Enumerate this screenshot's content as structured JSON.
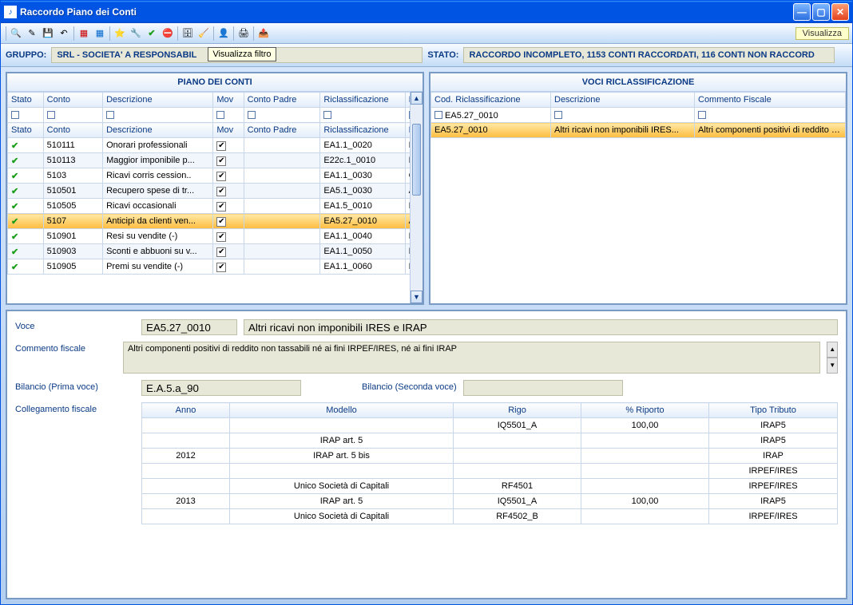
{
  "window": {
    "title": "Raccordo Piano dei Conti"
  },
  "toolbar": {
    "visualizza": "Visualizza"
  },
  "tooltip_filtro": "Visualizza filtro",
  "status": {
    "gruppo_label": "GRUPPO:",
    "gruppo_value": "SRL - SOCIETA' A RESPONSABIL",
    "stato_label": "STATO:",
    "stato_value": "RACCORDO INCOMPLETO, 1153 CONTI RACCORDATI, 116 CONTI NON RACCORD"
  },
  "panes": {
    "piano_title": "PIANO DEI CONTI",
    "voci_title": "VOCI RICLASSIFICAZIONE"
  },
  "piano": {
    "headers": {
      "stato": "Stato",
      "conto": "Conto",
      "descrizione": "Descrizione",
      "mov": "Mov",
      "conto_padre": "Conto Padre",
      "riclass": "Riclassificazione",
      "d": "D"
    },
    "rows": [
      {
        "conto": "510111",
        "descr": "Onorari professionali",
        "mov": true,
        "padre": "",
        "riclass": "EA1.1_0020",
        "d": "R"
      },
      {
        "conto": "510113",
        "descr": "Maggior imponibile p...",
        "mov": true,
        "padre": "",
        "riclass": "E22c.1_0010",
        "d": "R"
      },
      {
        "conto": "5103",
        "descr": "Ricavi corris cession..",
        "mov": true,
        "padre": "",
        "riclass": "EA1.1_0030",
        "d": "C"
      },
      {
        "conto": "510501",
        "descr": "Recupero spese di tr...",
        "mov": true,
        "padre": "",
        "riclass": "EA5.1_0030",
        "d": "A"
      },
      {
        "conto": "510505",
        "descr": "Ricavi occasionali",
        "mov": true,
        "padre": "",
        "riclass": "EA1.5_0010",
        "d": "R"
      },
      {
        "conto": "5107",
        "descr": "Anticipi da clienti ven...",
        "mov": true,
        "padre": "",
        "riclass": "EA5.27_0010",
        "d": "A",
        "selected": true
      },
      {
        "conto": "510901",
        "descr": "Resi su vendite (-)",
        "mov": true,
        "padre": "",
        "riclass": "EA1.1_0040",
        "d": "R"
      },
      {
        "conto": "510903",
        "descr": "Sconti e abbuoni su v...",
        "mov": true,
        "padre": "",
        "riclass": "EA1.1_0050",
        "d": "R"
      },
      {
        "conto": "510905",
        "descr": "Premi su vendite (-)",
        "mov": true,
        "padre": "",
        "riclass": "EA1.1_0060",
        "d": "P"
      }
    ]
  },
  "voci": {
    "headers": {
      "cod": "Cod. Riclassificazione",
      "descr": "Descrizione",
      "commento": "Commento Fiscale"
    },
    "rows": [
      {
        "cod": "EA5.27_0010",
        "descr": "",
        "commento": "",
        "filter": true
      },
      {
        "cod": "EA5.27_0010",
        "descr": "Altri ricavi non imponibili IRES...",
        "commento": "Altri componenti positivi di reddito no...",
        "selected": true
      }
    ]
  },
  "detail": {
    "voce_label": "Voce",
    "voce_code": "EA5.27_0010",
    "voce_descr": "Altri ricavi non imponibili IRES e IRAP",
    "commento_label": "Commento fiscale",
    "commento_value": "Altri componenti positivi di reddito non tassabili né ai fini IRPEF/IRES, né ai fini IRAP",
    "bilancio1_label": "Bilancio (Prima voce)",
    "bilancio1_value": "E.A.5.a_90",
    "bilancio2_label": "Bilancio (Seconda voce)",
    "bilancio2_value": "",
    "colleg_label": "Collegamento fiscale",
    "link_headers": {
      "anno": "Anno",
      "modello": "Modello",
      "rigo": "Rigo",
      "riporto": "% Riporto",
      "tipo": "Tipo Tributo"
    },
    "link_rows": [
      {
        "anno": "",
        "modello": "",
        "rigo": "IQ5501_A",
        "riporto": "100,00",
        "tipo": "IRAP5"
      },
      {
        "anno": "",
        "modello": "IRAP art. 5",
        "rigo": "",
        "riporto": "",
        "tipo": "IRAP5"
      },
      {
        "anno": "2012",
        "modello": "IRAP art. 5 bis",
        "rigo": "",
        "riporto": "",
        "tipo": "IRAP"
      },
      {
        "anno": "",
        "modello": "",
        "rigo": "",
        "riporto": "",
        "tipo": "IRPEF/IRES"
      },
      {
        "anno": "",
        "modello": "Unico Società di Capitali",
        "rigo": "RF4501",
        "riporto": "",
        "tipo": "IRPEF/IRES"
      },
      {
        "anno": "2013",
        "modello": "IRAP art. 5",
        "rigo": "IQ5501_A",
        "riporto": "100,00",
        "tipo": "IRAP5"
      },
      {
        "anno": "",
        "modello": "Unico Società di Capitali",
        "rigo": "RF4502_B",
        "riporto": "",
        "tipo": "IRPEF/IRES"
      }
    ]
  }
}
